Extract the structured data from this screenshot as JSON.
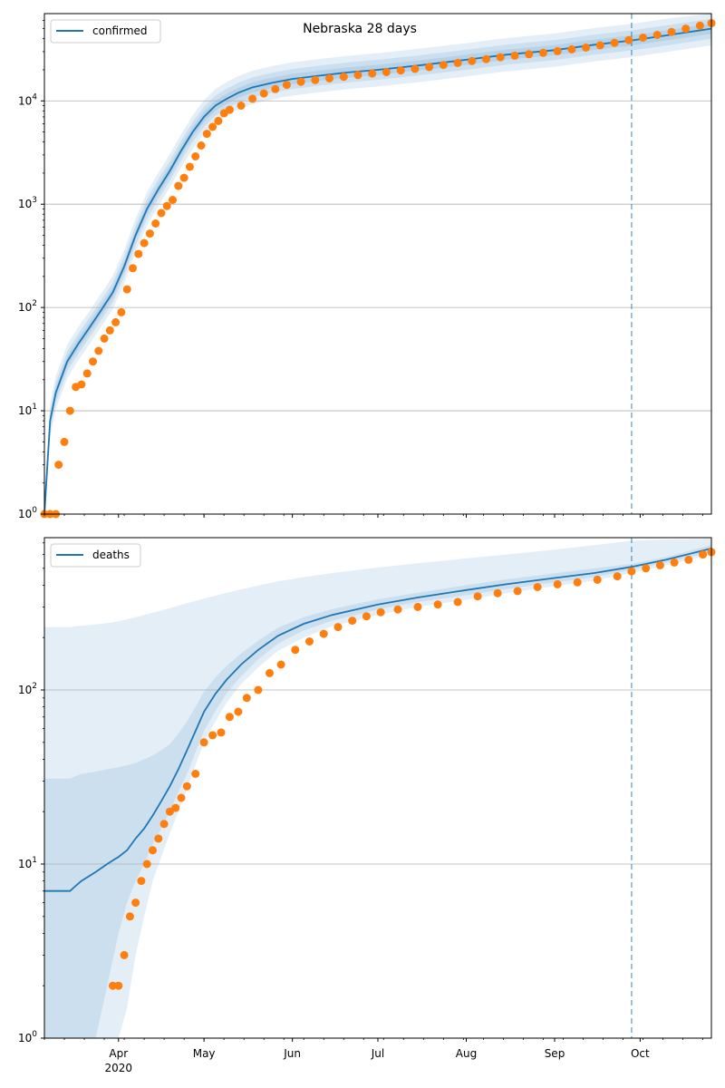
{
  "figure": {
    "title": "Nebraska 28 days",
    "colors": {
      "model_line": "#1f77b4",
      "observed": "#ff7f0e",
      "band": "#1f77b4",
      "grid": "#b0b0b0",
      "forecast_line": "#1f77b4"
    }
  },
  "chart_data": [
    {
      "type": "line",
      "name": "confirmed",
      "legend": {
        "label": "confirmed",
        "position": "upper-left"
      },
      "y_scale": "log",
      "ylim": [
        1,
        70000
      ],
      "xlim": [
        "2020-03-06",
        "2020-10-26"
      ],
      "forecast_start": "2020-09-28",
      "grid": "y-major",
      "y_ticks": [
        {
          "value": 1,
          "base": "10",
          "exp": "0"
        },
        {
          "value": 10,
          "base": "10",
          "exp": "1"
        },
        {
          "value": 100,
          "base": "10",
          "exp": "2"
        },
        {
          "value": 1000,
          "base": "10",
          "exp": "3"
        },
        {
          "value": 10000,
          "base": "10",
          "exp": "4"
        }
      ],
      "model": {
        "dates": [
          "2020-03-06",
          "2020-03-08",
          "2020-03-10",
          "2020-03-14",
          "2020-03-18",
          "2020-03-22",
          "2020-03-26",
          "2020-03-30",
          "2020-04-03",
          "2020-04-07",
          "2020-04-11",
          "2020-04-15",
          "2020-04-19",
          "2020-04-23",
          "2020-04-27",
          "2020-05-01",
          "2020-05-05",
          "2020-05-09",
          "2020-05-13",
          "2020-05-18",
          "2020-05-25",
          "2020-06-01",
          "2020-06-10",
          "2020-06-20",
          "2020-07-01",
          "2020-07-15",
          "2020-08-01",
          "2020-08-15",
          "2020-09-01",
          "2020-09-15",
          "2020-09-28",
          "2020-10-10",
          "2020-10-26"
        ],
        "values": [
          1,
          8,
          15,
          30,
          45,
          65,
          95,
          140,
          250,
          500,
          900,
          1400,
          2100,
          3300,
          5000,
          7000,
          9000,
          10500,
          12000,
          13500,
          15000,
          16300,
          17500,
          18800,
          20000,
          22000,
          25000,
          28000,
          31000,
          35000,
          38500,
          43000,
          50000
        ],
        "band_inner_ratio": 1.12,
        "band_mid_ratio": 1.25,
        "band_outer_ratio": 1.45
      },
      "observed": {
        "dates": [
          "2020-03-06",
          "2020-03-08",
          "2020-03-10",
          "2020-03-11",
          "2020-03-13",
          "2020-03-15",
          "2020-03-17",
          "2020-03-19",
          "2020-03-21",
          "2020-03-23",
          "2020-03-25",
          "2020-03-27",
          "2020-03-29",
          "2020-03-31",
          "2020-04-02",
          "2020-04-04",
          "2020-04-06",
          "2020-04-08",
          "2020-04-10",
          "2020-04-12",
          "2020-04-14",
          "2020-04-16",
          "2020-04-18",
          "2020-04-20",
          "2020-04-22",
          "2020-04-24",
          "2020-04-26",
          "2020-04-28",
          "2020-04-30",
          "2020-05-02",
          "2020-05-04",
          "2020-05-06",
          "2020-05-08",
          "2020-05-10",
          "2020-05-14",
          "2020-05-18",
          "2020-05-22",
          "2020-05-26",
          "2020-05-30",
          "2020-06-04",
          "2020-06-09",
          "2020-06-14",
          "2020-06-19",
          "2020-06-24",
          "2020-06-29",
          "2020-07-04",
          "2020-07-09",
          "2020-07-14",
          "2020-07-19",
          "2020-07-24",
          "2020-07-29",
          "2020-08-03",
          "2020-08-08",
          "2020-08-13",
          "2020-08-18",
          "2020-08-23",
          "2020-08-28",
          "2020-09-02",
          "2020-09-07",
          "2020-09-12",
          "2020-09-17",
          "2020-09-22",
          "2020-09-27",
          "2020-10-02",
          "2020-10-07",
          "2020-10-12",
          "2020-10-17",
          "2020-10-22",
          "2020-10-26"
        ],
        "values": [
          1,
          1,
          1,
          3,
          5,
          10,
          17,
          18,
          23,
          30,
          38,
          50,
          60,
          72,
          90,
          150,
          240,
          330,
          420,
          520,
          650,
          820,
          960,
          1100,
          1500,
          1800,
          2300,
          2900,
          3700,
          4800,
          5600,
          6400,
          7600,
          8200,
          9000,
          10500,
          11800,
          13000,
          14300,
          15300,
          15900,
          16500,
          17100,
          17800,
          18400,
          19000,
          19700,
          20400,
          21300,
          22300,
          23300,
          24300,
          25400,
          26500,
          27400,
          28300,
          29200,
          30300,
          31500,
          32800,
          34500,
          36500,
          38800,
          41000,
          43500,
          46500,
          50000,
          53500,
          56500
        ]
      }
    },
    {
      "type": "line",
      "name": "deaths",
      "legend": {
        "label": "deaths",
        "position": "upper-left"
      },
      "y_scale": "log",
      "ylim": [
        1,
        750
      ],
      "xlim": [
        "2020-03-06",
        "2020-10-26"
      ],
      "forecast_start": "2020-09-28",
      "grid": "y-major",
      "y_ticks": [
        {
          "value": 1,
          "base": "10",
          "exp": "0"
        },
        {
          "value": 10,
          "base": "10",
          "exp": "1"
        },
        {
          "value": 100,
          "base": "10",
          "exp": "2"
        }
      ],
      "x_ticks": [
        {
          "date": "2020-04-01",
          "label": "Apr",
          "sublabel": "2020"
        },
        {
          "date": "2020-05-01",
          "label": "May"
        },
        {
          "date": "2020-06-01",
          "label": "Jun"
        },
        {
          "date": "2020-07-01",
          "label": "Jul"
        },
        {
          "date": "2020-08-01",
          "label": "Aug"
        },
        {
          "date": "2020-09-01",
          "label": "Sep"
        },
        {
          "date": "2020-10-01",
          "label": "Oct"
        }
      ],
      "model": {
        "dates": [
          "2020-03-06",
          "2020-03-15",
          "2020-03-17",
          "2020-03-19",
          "2020-03-24",
          "2020-03-28",
          "2020-04-01",
          "2020-04-04",
          "2020-04-07",
          "2020-04-10",
          "2020-04-13",
          "2020-04-16",
          "2020-04-19",
          "2020-04-22",
          "2020-04-25",
          "2020-04-28",
          "2020-05-01",
          "2020-05-05",
          "2020-05-09",
          "2020-05-14",
          "2020-05-20",
          "2020-05-27",
          "2020-06-05",
          "2020-06-15",
          "2020-07-01",
          "2020-07-15",
          "2020-08-01",
          "2020-08-15",
          "2020-09-01",
          "2020-09-15",
          "2020-09-28",
          "2020-10-10",
          "2020-10-26"
        ],
        "values": [
          7,
          7,
          7.5,
          8,
          9,
          10,
          11,
          12,
          14,
          16,
          19,
          23,
          28,
          35,
          45,
          58,
          75,
          95,
          115,
          140,
          170,
          205,
          240,
          270,
          310,
          340,
          375,
          405,
          440,
          470,
          510,
          560,
          650
        ],
        "band_inner": {
          "lower": [
            1,
            1,
            1,
            1,
            1,
            2,
            4,
            6,
            8,
            10,
            13,
            16,
            20,
            26,
            33,
            44,
            58,
            76,
            96,
            120,
            150,
            185,
            220,
            250,
            290,
            320,
            350,
            380,
            415,
            445,
            490,
            540,
            620
          ],
          "upper": [
            31,
            31,
            32,
            33,
            34,
            35,
            36,
            37,
            38,
            40,
            42,
            45,
            49,
            56,
            66,
            80,
            98,
            118,
            138,
            162,
            192,
            228,
            262,
            292,
            332,
            362,
            400,
            432,
            468,
            500,
            530,
            580,
            680
          ]
        },
        "band_outer": {
          "lower": [
            1,
            1,
            1,
            1,
            1,
            1,
            1,
            1.5,
            3,
            5,
            8,
            11,
            15,
            20,
            27,
            37,
            50,
            66,
            85,
            108,
            135,
            168,
            200,
            232,
            270,
            300,
            330,
            360,
            395,
            425,
            470,
            520,
            600
          ],
          "upper": [
            230,
            230,
            232,
            234,
            238,
            242,
            248,
            255,
            262,
            270,
            278,
            286,
            295,
            305,
            315,
            325,
            335,
            348,
            362,
            378,
            398,
            420,
            445,
            470,
            505,
            535,
            570,
            600,
            640,
            680,
            720,
            730,
            740
          ]
        }
      },
      "observed": {
        "dates": [
          "2020-03-30",
          "2020-04-01",
          "2020-04-03",
          "2020-04-05",
          "2020-04-07",
          "2020-04-09",
          "2020-04-11",
          "2020-04-13",
          "2020-04-15",
          "2020-04-17",
          "2020-04-19",
          "2020-04-21",
          "2020-04-23",
          "2020-04-25",
          "2020-04-28",
          "2020-05-01",
          "2020-05-04",
          "2020-05-07",
          "2020-05-10",
          "2020-05-13",
          "2020-05-16",
          "2020-05-20",
          "2020-05-24",
          "2020-05-28",
          "2020-06-02",
          "2020-06-07",
          "2020-06-12",
          "2020-06-17",
          "2020-06-22",
          "2020-06-27",
          "2020-07-02",
          "2020-07-08",
          "2020-07-15",
          "2020-07-22",
          "2020-07-29",
          "2020-08-05",
          "2020-08-12",
          "2020-08-19",
          "2020-08-26",
          "2020-09-02",
          "2020-09-09",
          "2020-09-16",
          "2020-09-23",
          "2020-09-28",
          "2020-10-03",
          "2020-10-08",
          "2020-10-13",
          "2020-10-18",
          "2020-10-23",
          "2020-10-26"
        ],
        "values": [
          2,
          2,
          3,
          5,
          6,
          8,
          10,
          12,
          14,
          17,
          20,
          21,
          24,
          28,
          33,
          50,
          55,
          57,
          70,
          75,
          90,
          100,
          125,
          140,
          170,
          190,
          210,
          230,
          250,
          265,
          280,
          290,
          300,
          310,
          320,
          345,
          360,
          370,
          390,
          405,
          415,
          430,
          450,
          480,
          500,
          520,
          540,
          560,
          600,
          620
        ]
      }
    }
  ]
}
